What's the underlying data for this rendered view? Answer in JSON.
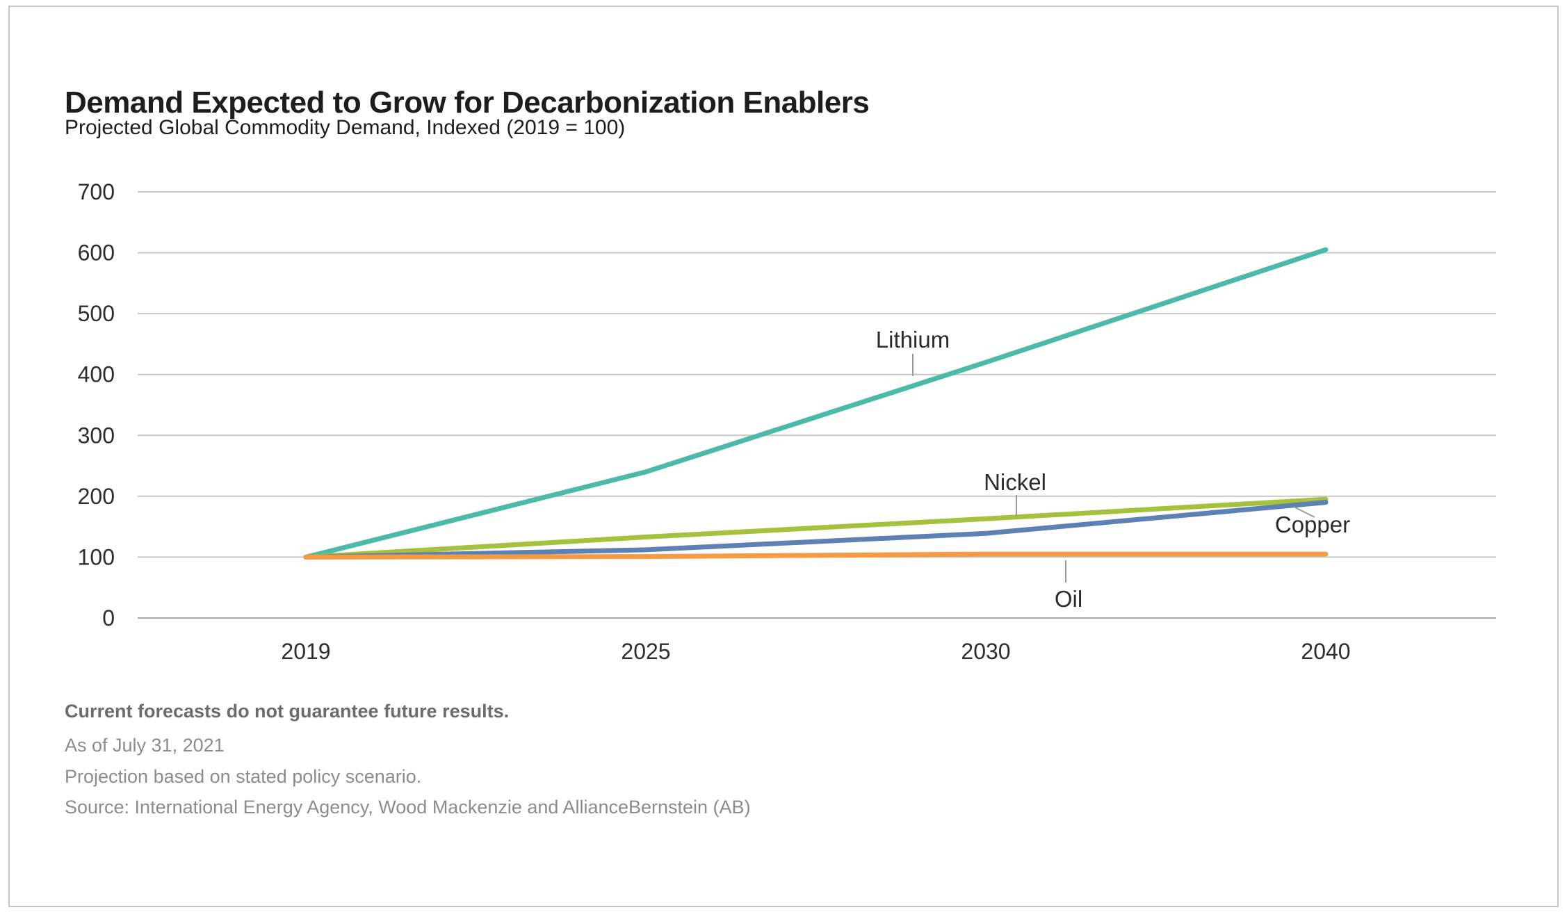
{
  "header": {
    "title": "Demand Expected to Grow for Decarbonization Enablers",
    "subtitle": "Projected Global Commodity Demand, Indexed (2019 = 100)"
  },
  "chart_data": {
    "type": "line",
    "title": "Demand Expected to Grow for Decarbonization Enablers",
    "subtitle": "Projected Global Commodity Demand, Indexed (2019 = 100)",
    "categories": [
      "2019",
      "2025",
      "2030",
      "2040"
    ],
    "series": [
      {
        "name": "Lithium",
        "color": "#4cbaa9",
        "values": [
          100,
          240,
          420,
          605
        ]
      },
      {
        "name": "Nickel",
        "color": "#a6c13d",
        "values": [
          100,
          133,
          163,
          195
        ]
      },
      {
        "name": "Copper",
        "color": "#5d81b4",
        "values": [
          100,
          112,
          139,
          190
        ]
      },
      {
        "name": "Oil",
        "color": "#f79a44",
        "values": [
          100,
          101,
          105,
          105
        ]
      }
    ],
    "xlabel": "",
    "ylabel": "",
    "ylim": [
      0,
      700
    ],
    "yticks": [
      0,
      100,
      200,
      300,
      400,
      500,
      600,
      700
    ],
    "grid": "horizontal",
    "legend": "inline-annotations"
  },
  "colors": {
    "gridline": "#c9c9c9",
    "axis_line": "#a9a9a9",
    "leader_line": "#999999",
    "tick_text": "#2d2d2d",
    "annotation_text": "#2b2b2b",
    "title_text": "#1d1d1d",
    "note_bold_text": "#6a6c6e",
    "note_text": "#8a8c8e",
    "card_border": "#c5c6c8"
  },
  "footnotes": {
    "disclaimer": "Current forecasts do not guarantee future results.",
    "as_of": "As of July 31, 2021",
    "projection": "Projection based on stated policy scenario.",
    "source": "Source: International Energy Agency, Wood Mackenzie and AllianceBernstein (AB)"
  }
}
